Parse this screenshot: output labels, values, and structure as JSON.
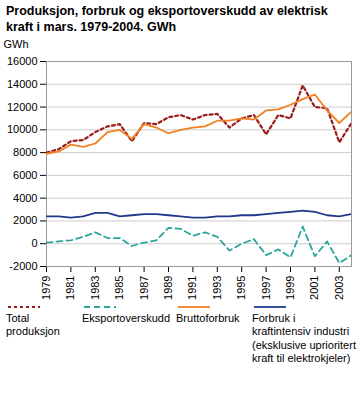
{
  "chart_data": {
    "type": "line",
    "title": "Produksjon, forbruk og eksportoverskudd av elektrisk kraft i mars. 1979-2004. GWh",
    "y_label": "GWh",
    "x": [
      1979,
      1980,
      1981,
      1982,
      1983,
      1984,
      1985,
      1986,
      1987,
      1988,
      1989,
      1990,
      1991,
      1992,
      1993,
      1994,
      1995,
      1996,
      1997,
      1998,
      1999,
      2000,
      2001,
      2002,
      2003,
      2004
    ],
    "xlim": [
      1979,
      2004
    ],
    "xticks": [
      1979,
      1981,
      1983,
      1985,
      1987,
      1989,
      1991,
      1993,
      1995,
      1997,
      1999,
      2001,
      2003
    ],
    "ylim": [
      -2000,
      16000
    ],
    "yticks": [
      -2000,
      0,
      2000,
      4000,
      6000,
      8000,
      10000,
      12000,
      14000,
      16000
    ],
    "grid": true,
    "legend": "bottom",
    "series": [
      {
        "name": "Total produksjon",
        "color": "#9b1c1c",
        "line_style": "dotted",
        "values": [
          8000,
          8300,
          9000,
          9100,
          9800,
          10300,
          10500,
          9000,
          10600,
          10500,
          11100,
          11300,
          10900,
          11300,
          11400,
          10200,
          11000,
          11300,
          9600,
          11300,
          11000,
          13900,
          12000,
          11900,
          8900,
          10600
        ]
      },
      {
        "name": "Eksportoverskudd",
        "color": "#2aa59a",
        "line_style": "dashed",
        "values": [
          100,
          200,
          300,
          600,
          1000,
          500,
          500,
          -200,
          100,
          300,
          1400,
          1300,
          700,
          1000,
          600,
          -600,
          0,
          400,
          -1000,
          -500,
          -1200,
          1500,
          -1100,
          200,
          -1700,
          -1000
        ]
      },
      {
        "name": "Bruttoforbruk",
        "color": "#f08020",
        "line_style": "solid",
        "values": [
          7900,
          8100,
          8700,
          8500,
          8800,
          9800,
          10000,
          9200,
          10500,
          10200,
          9700,
          10000,
          10200,
          10300,
          10800,
          10800,
          11000,
          10900,
          11700,
          11800,
          12200,
          12700,
          13100,
          11700,
          10600,
          11600
        ]
      },
      {
        "name": "Forbruk i kraftintensiv industri (eksklusive uprioritert kraft til elektrokjeler)",
        "color": "#1f3a8a",
        "line_style": "solid",
        "values": [
          2400,
          2400,
          2300,
          2400,
          2700,
          2700,
          2400,
          2500,
          2600,
          2600,
          2500,
          2400,
          2300,
          2300,
          2400,
          2400,
          2500,
          2500,
          2600,
          2700,
          2800,
          2900,
          2800,
          2500,
          2400,
          2600
        ]
      }
    ]
  }
}
